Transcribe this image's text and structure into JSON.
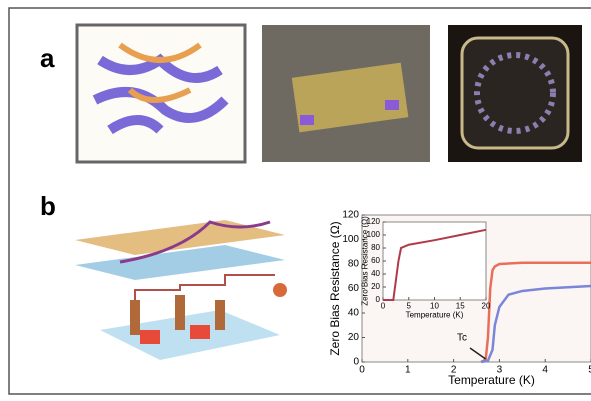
{
  "panel_labels": [
    "a",
    "b"
  ],
  "chart": {
    "type": "line",
    "xlabel": "Temperature (K)",
    "ylabel": "Zero Bias Resistance (Ω)",
    "annotation": "Tc",
    "xlim": [
      0,
      5
    ],
    "xticks": [
      0,
      1,
      2,
      3,
      4,
      5
    ],
    "ylim": [
      0,
      120
    ],
    "yticks": [
      0,
      20,
      40,
      60,
      80,
      100,
      120
    ],
    "series": [
      {
        "color": "#e8705a",
        "x": [
          2.6,
          2.7,
          2.75,
          2.8,
          2.85,
          2.9,
          3.0,
          3.5,
          4,
          5
        ],
        "values": [
          0,
          2,
          20,
          60,
          75,
          78,
          80,
          81,
          81,
          81
        ]
      },
      {
        "color": "#7a86d8",
        "x": [
          2.6,
          2.75,
          2.85,
          2.9,
          3.0,
          3.2,
          3.5,
          4,
          5
        ],
        "values": [
          0,
          1,
          10,
          30,
          45,
          55,
          58,
          60,
          62
        ]
      }
    ],
    "inset": {
      "xlabel": "Temperature (K)",
      "ylabel": "Zero Bias Resistance (Ω)",
      "xlim": [
        0,
        20
      ],
      "xticks": [
        0,
        5,
        10,
        15,
        20
      ],
      "ylim": [
        0,
        120
      ],
      "yticks": [
        0,
        20,
        40,
        60,
        80,
        100,
        120
      ],
      "series": [
        {
          "color": "#b03a48",
          "x": [
            0,
            2,
            3,
            3.5,
            5,
            10,
            15,
            20
          ],
          "values": [
            0,
            0,
            60,
            80,
            85,
            92,
            100,
            108
          ]
        }
      ]
    }
  }
}
